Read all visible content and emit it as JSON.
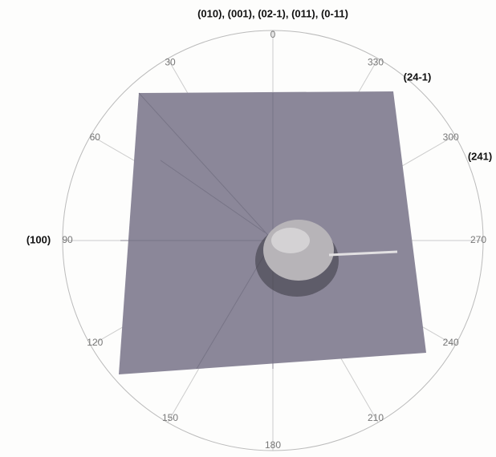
{
  "header": {
    "title": "(010), (001), (02-1), (011), (0-11)"
  },
  "pole_labels": [
    "(24-1)",
    "(241)",
    "(100)"
  ],
  "angle_labels": [
    "0",
    "30",
    "60",
    "90",
    "120",
    "150",
    "180",
    "210",
    "240",
    "270",
    "300",
    "330"
  ]
}
